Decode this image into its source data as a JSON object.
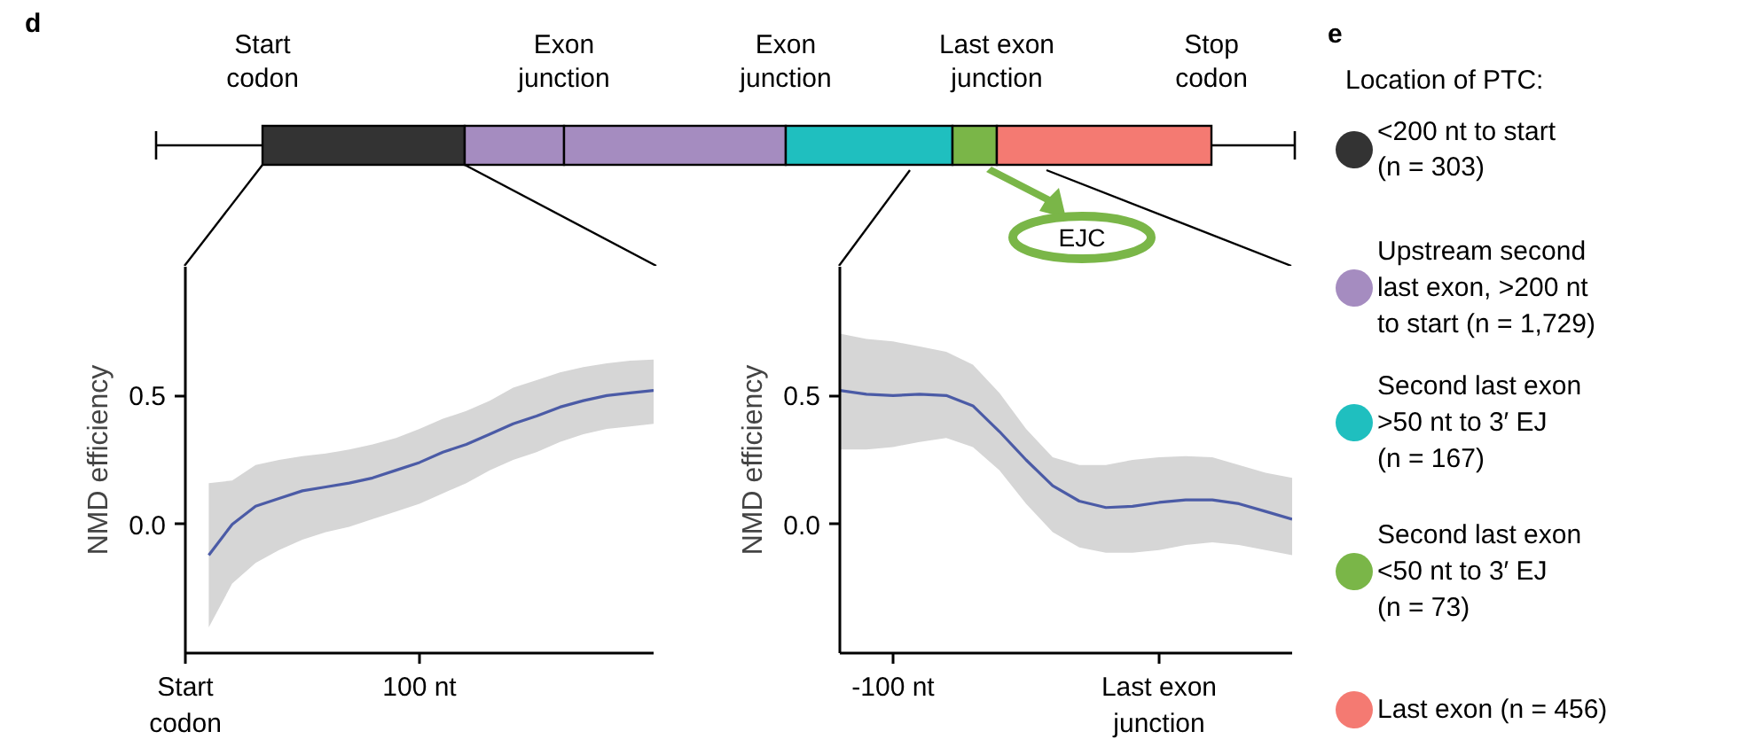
{
  "chart_data": [
    {
      "type": "other",
      "annotations": [
        "d",
        "Start\ncodon",
        "Exon\njunction",
        "Exon\njunction",
        "Last exon\njunction",
        "Stop\ncodon",
        "EJC"
      ],
      "colors": [
        "#333333",
        "#a58cc0",
        "#a58cc0",
        "#1fbfbf",
        "#7ab648",
        "#f47a72"
      ]
    },
    {
      "type": "line",
      "ylabel": "NMD efficiency",
      "categories": [
        "Start\ncodon",
        null,
        null,
        null,
        null,
        null,
        null,
        null,
        null,
        null,
        "100 nt",
        null,
        null,
        null,
        null,
        null,
        null,
        null,
        null,
        null,
        null
      ],
      "series": [
        {
          "color": "#4b5ba6",
          "values": [
            null,
            -0.12,
            0.0,
            0.07,
            0.1,
            0.13,
            0.145,
            0.16,
            0.18,
            0.21,
            0.24,
            0.28,
            0.31,
            0.35,
            0.39,
            0.42,
            0.455,
            0.48,
            0.5,
            0.51,
            0.52
          ],
          "lower": [
            null,
            -0.4,
            -0.23,
            -0.15,
            -0.1,
            -0.06,
            -0.03,
            -0.01,
            0.02,
            0.05,
            0.08,
            0.12,
            0.16,
            0.21,
            0.25,
            0.28,
            0.32,
            0.35,
            0.37,
            0.38,
            0.39
          ],
          "upper": [
            null,
            0.16,
            0.17,
            0.23,
            0.25,
            0.265,
            0.275,
            0.29,
            0.31,
            0.335,
            0.37,
            0.41,
            0.44,
            0.48,
            0.53,
            0.56,
            0.59,
            0.61,
            0.625,
            0.635,
            0.64
          ]
        }
      ],
      "ylim": [
        -0.5,
        1.0
      ],
      "yticks": [
        {
          "value": 0,
          "label": "0.0"
        },
        0.5
      ],
      "grid": false
    },
    {
      "type": "line",
      "ylabel": "NMD efficiency",
      "categories": [
        null,
        null,
        "-100 nt",
        null,
        null,
        null,
        null,
        null,
        null,
        null,
        null,
        null,
        "Last exon\njunction",
        null,
        null,
        null,
        null,
        null
      ],
      "series": [
        {
          "color": "#4b5ba6",
          "values": [
            0.52,
            0.505,
            0.5,
            0.505,
            0.5,
            0.46,
            0.36,
            0.25,
            0.15,
            0.09,
            0.065,
            0.07,
            0.085,
            0.095,
            0.095,
            0.08,
            0.05,
            0.02
          ],
          "lower": [
            0.29,
            0.29,
            0.3,
            0.32,
            0.335,
            0.3,
            0.21,
            0.08,
            -0.03,
            -0.09,
            -0.11,
            -0.11,
            -0.1,
            -0.08,
            -0.07,
            -0.08,
            -0.1,
            -0.12
          ],
          "upper": [
            0.74,
            0.72,
            0.71,
            0.69,
            0.67,
            0.62,
            0.51,
            0.37,
            0.26,
            0.23,
            0.23,
            0.25,
            0.26,
            0.265,
            0.26,
            0.23,
            0.2,
            0.18
          ]
        }
      ],
      "ylim": [
        -0.5,
        1.0
      ],
      "yticks": [
        {
          "value": 0,
          "label": "0.0"
        },
        0.5
      ],
      "grid": false
    },
    {
      "type": "other",
      "title": "Location of PTC:",
      "annotations": [
        "e"
      ],
      "categories": [
        "<200 nt to start\n(n = 303)",
        "Upstream second\nlast exon, >200 nt\nto start (n = 1,729)",
        "Second last exon\n>50 nt to 3′ EJ\n(n = 167)",
        "Second last exon\n<50 nt to 3′ EJ\n(n = 73)",
        "Last exon (n = 456)"
      ],
      "colors": [
        "#333333",
        "#a58cc0",
        "#1fbfbf",
        "#7ab648",
        "#f47a72"
      ]
    }
  ]
}
